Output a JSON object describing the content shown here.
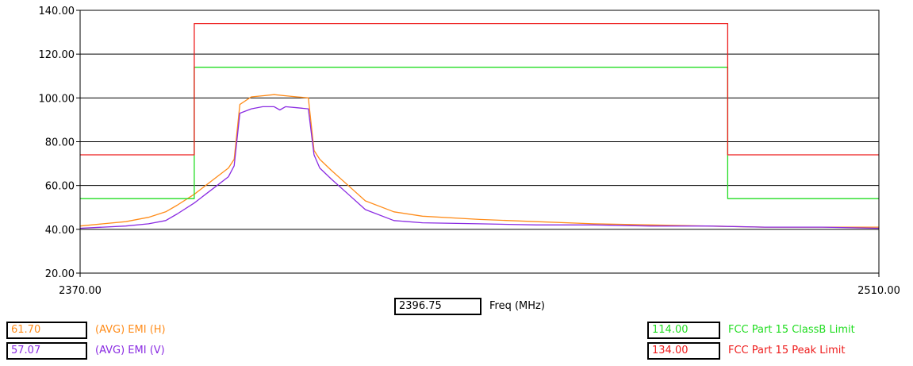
{
  "chart_data": {
    "type": "line",
    "xlabel": "Freq (MHz)",
    "ylabel": "",
    "xlim": [
      2370,
      2510
    ],
    "ylim": [
      20,
      140
    ],
    "x_tick_labels": [
      "2370.00",
      "2510.00"
    ],
    "y_ticks": [
      20,
      40,
      60,
      80,
      100,
      120,
      140
    ],
    "y_tick_labels": [
      "20.00",
      "40.00",
      "60.00",
      "80.00",
      "100.00",
      "120.00",
      "140.00"
    ],
    "grid": true,
    "series": [
      {
        "name": "(AVG) EMI (H)",
        "color": "#ff8c1a",
        "x": [
          2370,
          2374,
          2378,
          2382,
          2385,
          2387,
          2390,
          2392,
          2394,
          2396,
          2397,
          2398,
          2400,
          2402,
          2404,
          2406,
          2408,
          2410,
          2411,
          2412,
          2414,
          2417,
          2420,
          2425,
          2430,
          2440,
          2450,
          2460,
          2470,
          2480,
          2490,
          2500,
          2510
        ],
        "y": [
          41.5,
          42.5,
          43.5,
          45.5,
          48,
          51,
          56,
          60,
          64,
          68,
          72,
          97,
          100.5,
          101,
          101.5,
          101,
          100.5,
          100,
          76,
          72,
          67,
          60,
          53,
          48,
          46,
          44.5,
          43.5,
          42.5,
          42,
          41.5,
          41,
          41,
          41
        ]
      },
      {
        "name": "(AVG) EMI (V)",
        "color": "#8a2be2",
        "x": [
          2370,
          2374,
          2378,
          2382,
          2385,
          2387,
          2390,
          2392,
          2394,
          2396,
          2397,
          2398,
          2400,
          2402,
          2404,
          2405,
          2406,
          2408,
          2410,
          2411,
          2412,
          2414,
          2417,
          2420,
          2425,
          2430,
          2440,
          2450,
          2460,
          2470,
          2480,
          2490,
          2500,
          2510
        ],
        "y": [
          40.5,
          41,
          41.5,
          42.5,
          44,
          47,
          52,
          56,
          60,
          64,
          69,
          93,
          95,
          96,
          96,
          94.5,
          96,
          95.5,
          95,
          74,
          68,
          63,
          56,
          49,
          44,
          43,
          42.5,
          42,
          42,
          41.5,
          41.5,
          41,
          41,
          40.5
        ]
      },
      {
        "name": "FCC Part 15 ClassB Limit",
        "color": "#22dd22",
        "x": [
          2370,
          2390,
          2390,
          2483.5,
          2483.5,
          2510
        ],
        "y": [
          54,
          54,
          114,
          114,
          54,
          54
        ]
      },
      {
        "name": "FCC Part 15 Peak Limit",
        "color": "#ee1c1c",
        "x": [
          2370,
          2390,
          2390,
          2483.5,
          2483.5,
          2510
        ],
        "y": [
          74,
          74,
          134,
          134,
          74,
          74
        ]
      }
    ]
  },
  "cursor": {
    "freq_value": "2396.75"
  },
  "legend": [
    {
      "value": "61.70",
      "label": "(AVG) EMI (H)",
      "color": "#ff8c1a"
    },
    {
      "value": "57.07",
      "label": "(AVG) EMI (V)",
      "color": "#8a2be2"
    },
    {
      "value": "114.00",
      "label": "FCC Part 15 ClassB Limit",
      "color": "#22dd22"
    },
    {
      "value": "134.00",
      "label": "FCC Part 15 Peak Limit",
      "color": "#ee1c1c"
    }
  ]
}
